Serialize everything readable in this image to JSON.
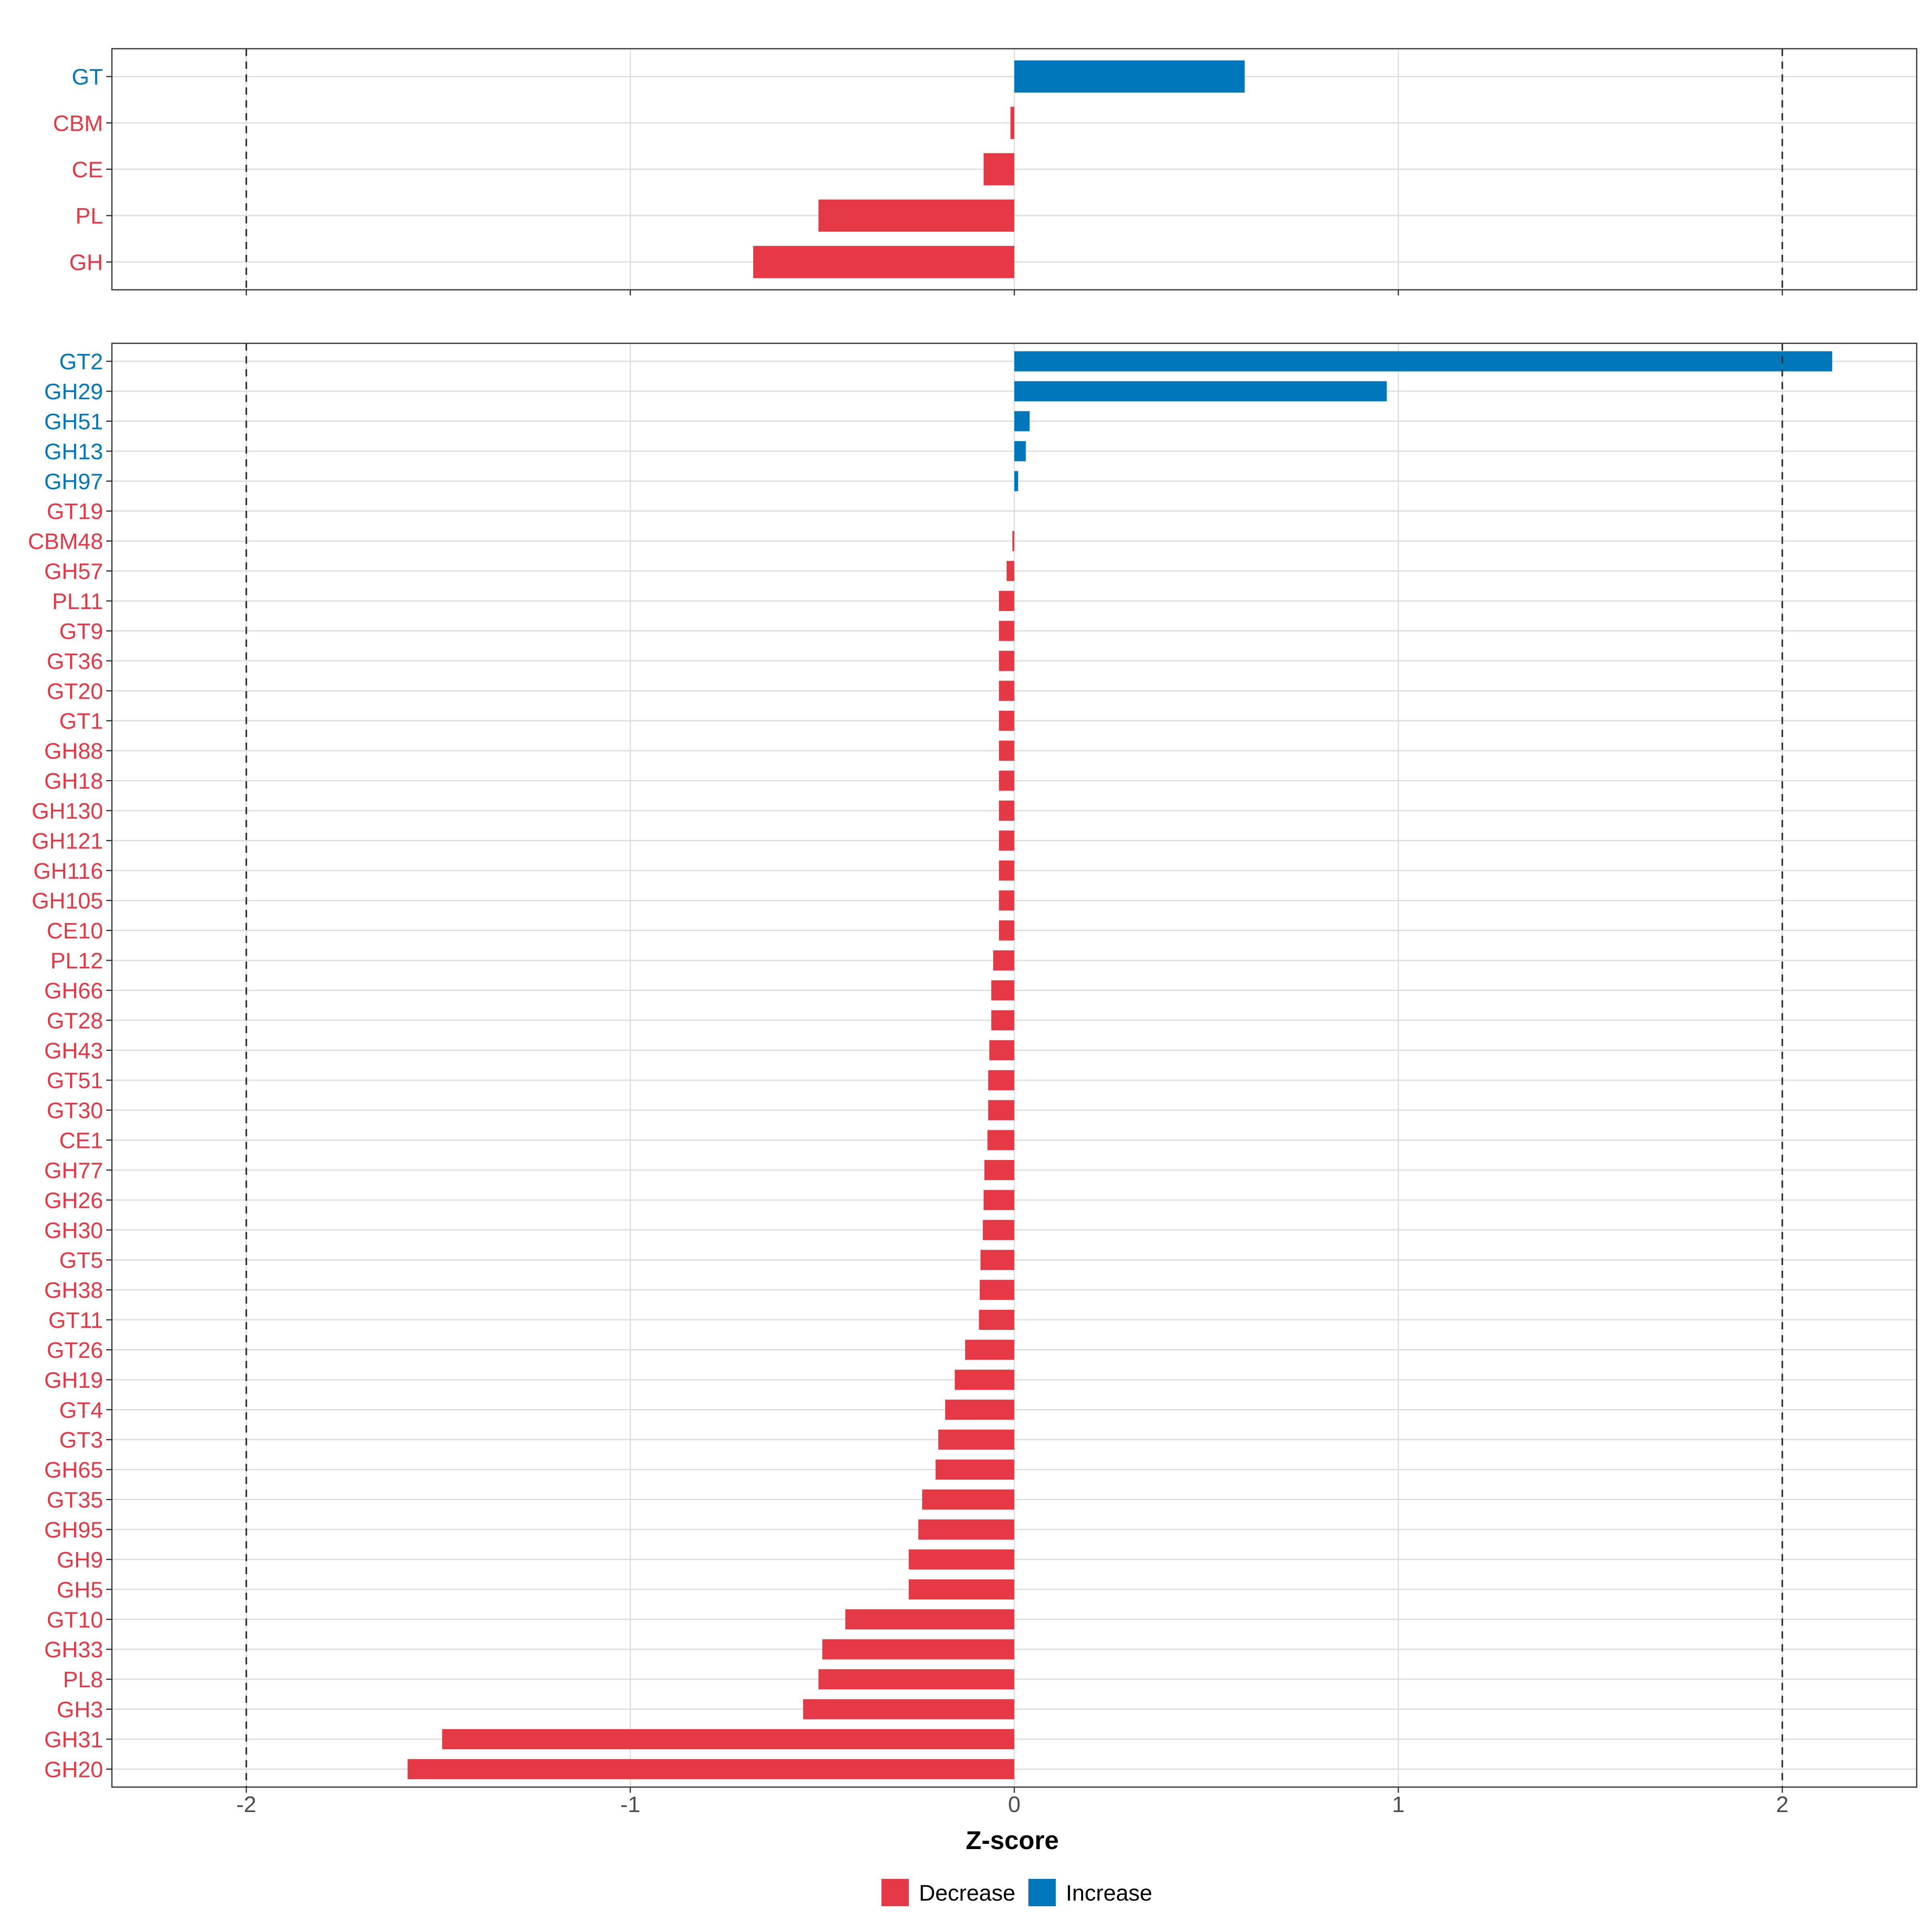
{
  "colors": {
    "decrease": "#E63946",
    "increase": "#0077BB"
  },
  "chart_data": [
    {
      "type": "bar",
      "orientation": "horizontal",
      "panel": "class",
      "categories": [
        "GT",
        "CBM",
        "CE",
        "PL",
        "GH"
      ],
      "values": [
        0.6,
        -0.01,
        -0.08,
        -0.51,
        -0.68
      ],
      "xlim": [
        -2.35,
        2.35
      ],
      "reference_lines": [
        -2,
        2
      ],
      "grid": true
    },
    {
      "type": "bar",
      "orientation": "horizontal",
      "panel": "family",
      "categories": [
        "GT2",
        "GH29",
        "GH51",
        "GH13",
        "GH97",
        "GT19",
        "CBM48",
        "GH57",
        "PL11",
        "GT9",
        "GT36",
        "GT20",
        "GT1",
        "GH88",
        "GH18",
        "GH130",
        "GH121",
        "GH116",
        "GH105",
        "CE10",
        "PL12",
        "GH66",
        "GT28",
        "GH43",
        "GT51",
        "GT30",
        "CE1",
        "GH77",
        "GH26",
        "GH30",
        "GT5",
        "GH38",
        "GT11",
        "GT26",
        "GH19",
        "GT4",
        "GT3",
        "GH65",
        "GT35",
        "GH95",
        "GH9",
        "GH5",
        "GT10",
        "GH33",
        "PL8",
        "GH3",
        "GH31",
        "GH20"
      ],
      "values": [
        2.13,
        0.97,
        0.04,
        0.03,
        0.01,
        0.0,
        -0.005,
        -0.02,
        -0.04,
        -0.04,
        -0.04,
        -0.04,
        -0.04,
        -0.04,
        -0.04,
        -0.04,
        -0.04,
        -0.04,
        -0.04,
        -0.04,
        -0.055,
        -0.06,
        -0.06,
        -0.065,
        -0.068,
        -0.068,
        -0.07,
        -0.078,
        -0.08,
        -0.082,
        -0.088,
        -0.09,
        -0.092,
        -0.128,
        -0.155,
        -0.18,
        -0.198,
        -0.205,
        -0.24,
        -0.25,
        -0.275,
        -0.275,
        -0.44,
        -0.5,
        -0.51,
        -0.55,
        -1.49,
        -1.58
      ],
      "xlim": [
        -2.35,
        2.35
      ],
      "reference_lines": [
        -2,
        2
      ],
      "grid": true,
      "x_ticks": [
        -2,
        -1,
        0,
        1,
        2
      ],
      "x_tick_labels": [
        "-2",
        "-1",
        "0",
        "1",
        "2"
      ],
      "xlabel": "Z-score"
    }
  ],
  "legend": {
    "items": [
      {
        "label": "Decrease",
        "color_key": "decrease"
      },
      {
        "label": "Increase",
        "color_key": "increase"
      }
    ]
  }
}
